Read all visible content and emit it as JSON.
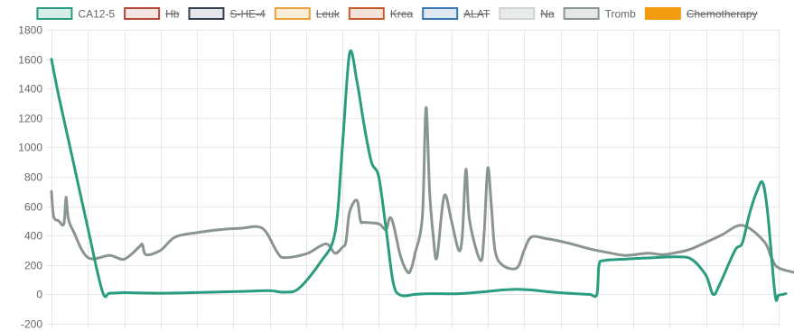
{
  "chart_data": {
    "type": "line",
    "ylim": [
      -200,
      1800
    ],
    "y_ticks": [
      1800,
      1600,
      1400,
      1200,
      1000,
      800,
      600,
      400,
      200,
      0,
      -200
    ],
    "x_range": [
      0,
      100
    ],
    "grid": true,
    "legend_placement": "top",
    "legend": [
      {
        "label": "CA12-5",
        "stroke": "#2a9d80",
        "fill": "#d7ede7",
        "hidden": false,
        "series": "ca125"
      },
      {
        "label": "Hb",
        "stroke": "#b5473a",
        "fill": "#f4e4e2",
        "hidden": true
      },
      {
        "label": "S-HE-4",
        "stroke": "#34404d",
        "fill": "#e4e5e8",
        "hidden": true
      },
      {
        "label": "Leuk",
        "stroke": "#e9a23b",
        "fill": "#fbecd7",
        "hidden": true
      },
      {
        "label": "Krea",
        "stroke": "#c45c2e",
        "fill": "#f5e3da",
        "hidden": true
      },
      {
        "label": "ALAT",
        "stroke": "#3a77b0",
        "fill": "#dfe9f3",
        "hidden": true
      },
      {
        "label": "Na",
        "stroke": "#cfd3d3",
        "fill": "#eaecec",
        "hidden": true
      },
      {
        "label": "Tromb",
        "stroke": "#8a9491",
        "fill": "#e6e8e7",
        "hidden": false,
        "series": "tromb"
      },
      {
        "label": "Chemotherapy",
        "stroke": "#f39c12",
        "fill": "#f39c12",
        "hidden": true
      }
    ],
    "series": [
      {
        "key": "ca125",
        "color": "#2a9d80",
        "points": [
          [
            0,
            1600
          ],
          [
            1,
            1350
          ],
          [
            3,
            900
          ],
          [
            5,
            450
          ],
          [
            7,
            20
          ],
          [
            8,
            8
          ],
          [
            10,
            12
          ],
          [
            12,
            10
          ],
          [
            15,
            8
          ],
          [
            18,
            10
          ],
          [
            22,
            15
          ],
          [
            26,
            20
          ],
          [
            30,
            25
          ],
          [
            32,
            15
          ],
          [
            34,
            40
          ],
          [
            37,
            220
          ],
          [
            39,
            420
          ],
          [
            40,
            1000
          ],
          [
            41,
            1640
          ],
          [
            42,
            1450
          ],
          [
            43,
            1150
          ],
          [
            44,
            900
          ],
          [
            45,
            800
          ],
          [
            46,
            450
          ],
          [
            47,
            80
          ],
          [
            48,
            -5
          ],
          [
            50,
            0
          ],
          [
            52,
            5
          ],
          [
            56,
            5
          ],
          [
            60,
            20
          ],
          [
            62,
            30
          ],
          [
            64,
            35
          ],
          [
            66,
            30
          ],
          [
            69,
            15
          ],
          [
            72,
            5
          ],
          [
            74,
            0
          ],
          [
            75,
            0
          ],
          [
            75.3,
            200
          ],
          [
            76,
            230
          ],
          [
            79,
            240
          ],
          [
            83,
            250
          ],
          [
            86,
            255
          ],
          [
            88,
            240
          ],
          [
            90,
            130
          ],
          [
            91,
            0
          ],
          [
            92,
            80
          ],
          [
            94,
            300
          ],
          [
            95,
            350
          ],
          [
            96,
            550
          ],
          [
            97,
            700
          ],
          [
            97.8,
            760
          ],
          [
            98.5,
            550
          ],
          [
            99.5,
            0
          ],
          [
            100,
            -5
          ],
          [
            101,
            5
          ]
        ]
      },
      {
        "key": "tromb",
        "color": "#8a9491",
        "points": [
          [
            0,
            700
          ],
          [
            0.3,
            530
          ],
          [
            1,
            500
          ],
          [
            1.7,
            480
          ],
          [
            2,
            660
          ],
          [
            2.3,
            520
          ],
          [
            3,
            430
          ],
          [
            5,
            250
          ],
          [
            8,
            265
          ],
          [
            10,
            240
          ],
          [
            12,
            320
          ],
          [
            12.5,
            340
          ],
          [
            13,
            270
          ],
          [
            15,
            300
          ],
          [
            17,
            390
          ],
          [
            20,
            420
          ],
          [
            23,
            440
          ],
          [
            26,
            450
          ],
          [
            29,
            450
          ],
          [
            31,
            290
          ],
          [
            32,
            250
          ],
          [
            35,
            275
          ],
          [
            37,
            330
          ],
          [
            38,
            340
          ],
          [
            39,
            280
          ],
          [
            40,
            320
          ],
          [
            40.5,
            360
          ],
          [
            41,
            560
          ],
          [
            42,
            640
          ],
          [
            42.5,
            500
          ],
          [
            43,
            490
          ],
          [
            45,
            480
          ],
          [
            46,
            440
          ],
          [
            46.5,
            520
          ],
          [
            47,
            480
          ],
          [
            48,
            260
          ],
          [
            49,
            150
          ],
          [
            49.5,
            180
          ],
          [
            50,
            280
          ],
          [
            51,
            530
          ],
          [
            51.5,
            1270
          ],
          [
            52,
            700
          ],
          [
            52.5,
            400
          ],
          [
            53,
            250
          ],
          [
            54,
            670
          ],
          [
            55,
            500
          ],
          [
            56,
            300
          ],
          [
            56.5,
            400
          ],
          [
            57,
            850
          ],
          [
            57.5,
            500
          ],
          [
            59,
            230
          ],
          [
            59.5,
            420
          ],
          [
            60,
            860
          ],
          [
            60.5,
            600
          ],
          [
            61,
            300
          ],
          [
            62,
            200
          ],
          [
            64,
            180
          ],
          [
            65,
            300
          ],
          [
            66,
            390
          ],
          [
            68,
            380
          ],
          [
            71,
            350
          ],
          [
            74,
            310
          ],
          [
            77,
            280
          ],
          [
            79,
            265
          ],
          [
            82,
            280
          ],
          [
            84,
            270
          ],
          [
            86,
            285
          ],
          [
            88,
            310
          ],
          [
            92,
            400
          ],
          [
            95,
            470
          ],
          [
            98,
            360
          ],
          [
            99,
            250
          ],
          [
            100,
            180
          ],
          [
            103,
            140
          ]
        ]
      }
    ]
  }
}
